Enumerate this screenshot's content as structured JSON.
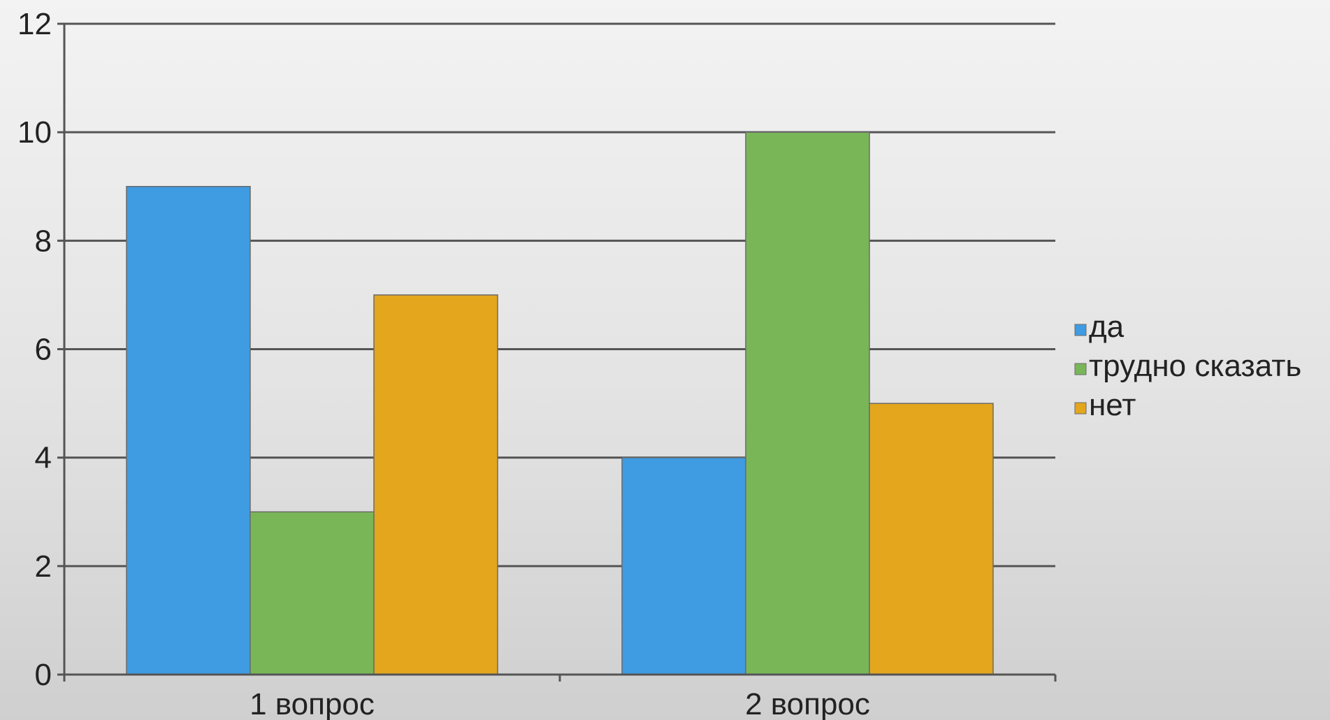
{
  "chart_data": {
    "type": "bar",
    "categories": [
      "1 вопрос",
      "2 вопрос"
    ],
    "series": [
      {
        "name": "да",
        "values": [
          9,
          4
        ],
        "color": "#3f9be2"
      },
      {
        "name": "трудно сказать",
        "values": [
          3,
          10
        ],
        "color": "#79b658"
      },
      {
        "name": "нет",
        "values": [
          7,
          5
        ],
        "color": "#e3a61d"
      }
    ],
    "yticks": [
      "0",
      "2",
      "4",
      "6",
      "8",
      "10",
      "12"
    ],
    "ylim": [
      0,
      12
    ],
    "grid": true,
    "legend": "right"
  }
}
